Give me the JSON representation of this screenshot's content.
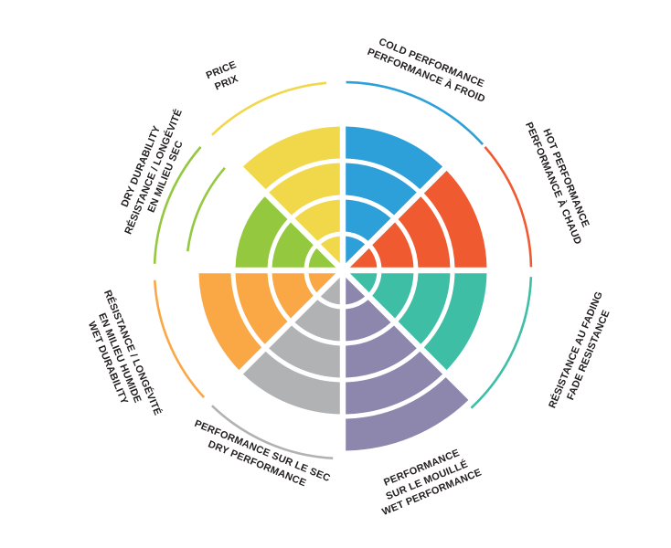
{
  "chart_data": {
    "type": "radial_sector_wheel",
    "title": "",
    "rings": 5,
    "max_value": 5,
    "background_color": "#FFFFFF",
    "text_color": "#231F20",
    "ring_separator_color": "#FFFFFF",
    "legend_position": "labels around wheel, rotated tangentially",
    "sectors": [
      {
        "id": "cold-performance",
        "lines": [
          "COLD PERFORMANCE",
          "PERFORMANCE À FROID"
        ],
        "value": 4,
        "color": "#2D9FD9",
        "outer_arc": true,
        "extra_inner_arc": false
      },
      {
        "id": "hot-performance",
        "lines": [
          "HOT PERFORMANCE",
          "PERFORMANCE À CHAUD"
        ],
        "value": 4,
        "color": "#F05A30",
        "outer_arc": true,
        "extra_inner_arc": false
      },
      {
        "id": "fade-resistance",
        "lines": [
          "RÉSISTANCE AU FADING",
          "FADE RESISTANCE"
        ],
        "value": 4,
        "color": "#3FBEA6",
        "outer_arc": true,
        "extra_inner_arc": false
      },
      {
        "id": "wet-performance",
        "lines": [
          "PERFORMANCE",
          "SUR LE MOUILLÉ",
          "WET PERFORMANCE"
        ],
        "value": 5,
        "color": "#8D87AE",
        "outer_arc": false,
        "extra_inner_arc": false
      },
      {
        "id": "dry-performance",
        "lines": [
          "PERFORMANCE SUR LE SEC",
          "DRY PERFORMANCE"
        ],
        "value": 4,
        "color": "#B0B2B4",
        "outer_arc": true,
        "extra_inner_arc": false
      },
      {
        "id": "wet-durability",
        "lines": [
          "RÉSISTANCE / LONGÉVITÉ",
          "EN MILIEU HUMIDE",
          "WET DURABILITY"
        ],
        "value": 4,
        "color": "#F9A845",
        "outer_arc": true,
        "extra_inner_arc": false
      },
      {
        "id": "dry-durability",
        "lines": [
          "DRY DURABILITY",
          "RÉSISTANCE / LONGÉVITÉ",
          "EN MILIEU SEC"
        ],
        "value": 3,
        "color": "#94C83E",
        "outer_arc": true,
        "extra_inner_arc": true
      },
      {
        "id": "price",
        "lines": [
          "PRICE",
          "PRIX"
        ],
        "value": 4,
        "color": "#F1D84B",
        "outer_arc": true,
        "extra_inner_arc": false
      }
    ]
  }
}
